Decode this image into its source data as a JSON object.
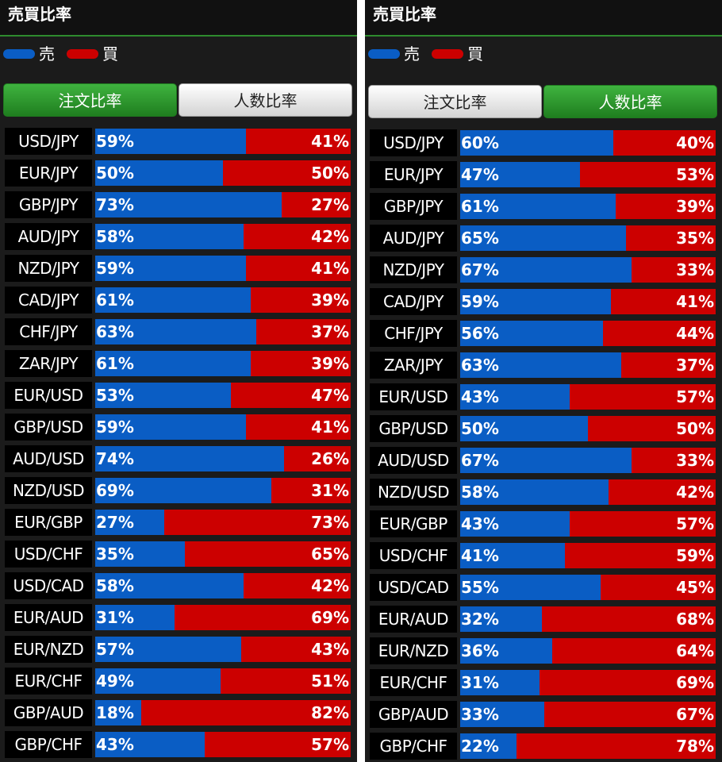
{
  "colors": {
    "sell": "#0a5dc4",
    "buy": "#cc0000",
    "active_tab": "#2e9b2e",
    "background": "#1b1b1b"
  },
  "panels": [
    {
      "title": "売買比率",
      "legend": {
        "sell": "売",
        "buy": "買"
      },
      "tabs": [
        {
          "label": "注文比率",
          "active": true
        },
        {
          "label": "人数比率",
          "active": false
        }
      ],
      "rows": [
        {
          "pair": "USD/JPY",
          "sell": 59,
          "buy": 41,
          "sell_label": "59%",
          "buy_label": "41%"
        },
        {
          "pair": "EUR/JPY",
          "sell": 50,
          "buy": 50,
          "sell_label": "50%",
          "buy_label": "50%"
        },
        {
          "pair": "GBP/JPY",
          "sell": 73,
          "buy": 27,
          "sell_label": "73%",
          "buy_label": "27%"
        },
        {
          "pair": "AUD/JPY",
          "sell": 58,
          "buy": 42,
          "sell_label": "58%",
          "buy_label": "42%"
        },
        {
          "pair": "NZD/JPY",
          "sell": 59,
          "buy": 41,
          "sell_label": "59%",
          "buy_label": "41%"
        },
        {
          "pair": "CAD/JPY",
          "sell": 61,
          "buy": 39,
          "sell_label": "61%",
          "buy_label": "39%"
        },
        {
          "pair": "CHF/JPY",
          "sell": 63,
          "buy": 37,
          "sell_label": "63%",
          "buy_label": "37%"
        },
        {
          "pair": "ZAR/JPY",
          "sell": 61,
          "buy": 39,
          "sell_label": "61%",
          "buy_label": "39%"
        },
        {
          "pair": "EUR/USD",
          "sell": 53,
          "buy": 47,
          "sell_label": "53%",
          "buy_label": "47%"
        },
        {
          "pair": "GBP/USD",
          "sell": 59,
          "buy": 41,
          "sell_label": "59%",
          "buy_label": "41%"
        },
        {
          "pair": "AUD/USD",
          "sell": 74,
          "buy": 26,
          "sell_label": "74%",
          "buy_label": "26%"
        },
        {
          "pair": "NZD/USD",
          "sell": 69,
          "buy": 31,
          "sell_label": "69%",
          "buy_label": "31%"
        },
        {
          "pair": "EUR/GBP",
          "sell": 27,
          "buy": 73,
          "sell_label": "27%",
          "buy_label": "73%"
        },
        {
          "pair": "USD/CHF",
          "sell": 35,
          "buy": 65,
          "sell_label": "35%",
          "buy_label": "65%"
        },
        {
          "pair": "USD/CAD",
          "sell": 58,
          "buy": 42,
          "sell_label": "58%",
          "buy_label": "42%"
        },
        {
          "pair": "EUR/AUD",
          "sell": 31,
          "buy": 69,
          "sell_label": "31%",
          "buy_label": "69%"
        },
        {
          "pair": "EUR/NZD",
          "sell": 57,
          "buy": 43,
          "sell_label": "57%",
          "buy_label": "43%"
        },
        {
          "pair": "EUR/CHF",
          "sell": 49,
          "buy": 51,
          "sell_label": "49%",
          "buy_label": "51%"
        },
        {
          "pair": "GBP/AUD",
          "sell": 18,
          "buy": 82,
          "sell_label": "18%",
          "buy_label": "82%"
        },
        {
          "pair": "GBP/CHF",
          "sell": 43,
          "buy": 57,
          "sell_label": "43%",
          "buy_label": "57%"
        }
      ]
    },
    {
      "title": "売買比率",
      "legend": {
        "sell": "売",
        "buy": "買"
      },
      "tabs": [
        {
          "label": "注文比率",
          "active": false
        },
        {
          "label": "人数比率",
          "active": true
        }
      ],
      "rows": [
        {
          "pair": "USD/JPY",
          "sell": 60,
          "buy": 40,
          "sell_label": "60%",
          "buy_label": "40%"
        },
        {
          "pair": "EUR/JPY",
          "sell": 47,
          "buy": 53,
          "sell_label": "47%",
          "buy_label": "53%"
        },
        {
          "pair": "GBP/JPY",
          "sell": 61,
          "buy": 39,
          "sell_label": "61%",
          "buy_label": "39%"
        },
        {
          "pair": "AUD/JPY",
          "sell": 65,
          "buy": 35,
          "sell_label": "65%",
          "buy_label": "35%"
        },
        {
          "pair": "NZD/JPY",
          "sell": 67,
          "buy": 33,
          "sell_label": "67%",
          "buy_label": "33%"
        },
        {
          "pair": "CAD/JPY",
          "sell": 59,
          "buy": 41,
          "sell_label": "59%",
          "buy_label": "41%"
        },
        {
          "pair": "CHF/JPY",
          "sell": 56,
          "buy": 44,
          "sell_label": "56%",
          "buy_label": "44%"
        },
        {
          "pair": "ZAR/JPY",
          "sell": 63,
          "buy": 37,
          "sell_label": "63%",
          "buy_label": "37%"
        },
        {
          "pair": "EUR/USD",
          "sell": 43,
          "buy": 57,
          "sell_label": "43%",
          "buy_label": "57%"
        },
        {
          "pair": "GBP/USD",
          "sell": 50,
          "buy": 50,
          "sell_label": "50%",
          "buy_label": "50%"
        },
        {
          "pair": "AUD/USD",
          "sell": 67,
          "buy": 33,
          "sell_label": "67%",
          "buy_label": "33%"
        },
        {
          "pair": "NZD/USD",
          "sell": 58,
          "buy": 42,
          "sell_label": "58%",
          "buy_label": "42%"
        },
        {
          "pair": "EUR/GBP",
          "sell": 43,
          "buy": 57,
          "sell_label": "43%",
          "buy_label": "57%"
        },
        {
          "pair": "USD/CHF",
          "sell": 41,
          "buy": 59,
          "sell_label": "41%",
          "buy_label": "59%"
        },
        {
          "pair": "USD/CAD",
          "sell": 55,
          "buy": 45,
          "sell_label": "55%",
          "buy_label": "45%"
        },
        {
          "pair": "EUR/AUD",
          "sell": 32,
          "buy": 68,
          "sell_label": "32%",
          "buy_label": "68%"
        },
        {
          "pair": "EUR/NZD",
          "sell": 36,
          "buy": 64,
          "sell_label": "36%",
          "buy_label": "64%"
        },
        {
          "pair": "EUR/CHF",
          "sell": 31,
          "buy": 69,
          "sell_label": "31%",
          "buy_label": "69%"
        },
        {
          "pair": "GBP/AUD",
          "sell": 33,
          "buy": 67,
          "sell_label": "33%",
          "buy_label": "67%"
        },
        {
          "pair": "GBP/CHF",
          "sell": 22,
          "buy": 78,
          "sell_label": "22%",
          "buy_label": "78%"
        }
      ]
    }
  ]
}
